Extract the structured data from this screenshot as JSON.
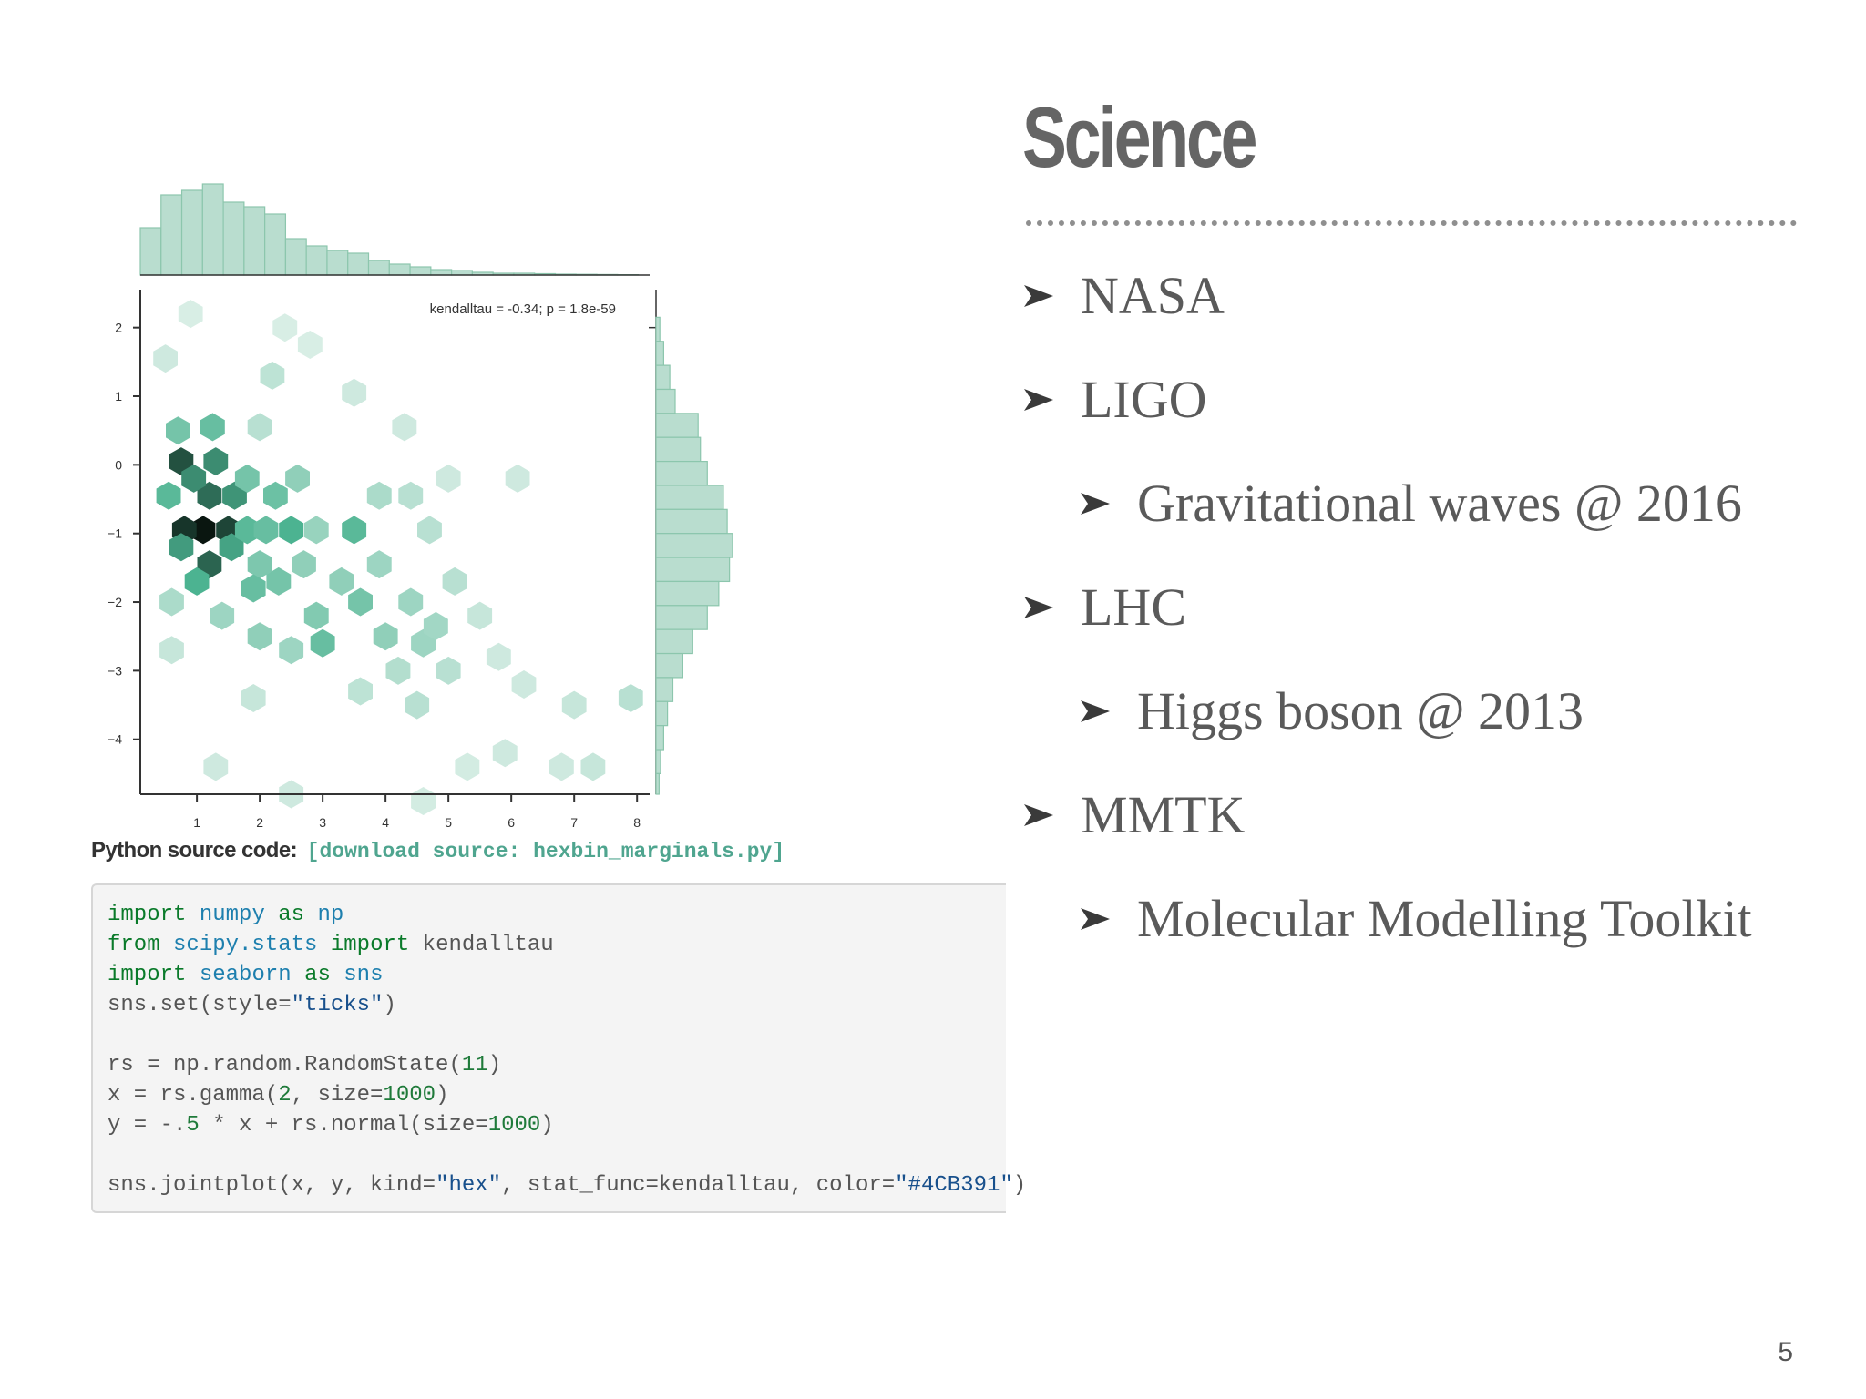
{
  "slide": {
    "title": "Science",
    "page_number": "5",
    "bullets": [
      {
        "text": "NASA",
        "level": 0
      },
      {
        "text": "LIGO",
        "level": 0
      },
      {
        "text": "Gravitational waves @ 2016",
        "level": 1
      },
      {
        "text": "LHC",
        "level": 0
      },
      {
        "text": "Higgs boson @ 2013",
        "level": 1
      },
      {
        "text": "MMTK",
        "level": 0
      },
      {
        "text": "Molecular Modelling Toolkit",
        "level": 1
      }
    ]
  },
  "code_caption": {
    "label": "Python source code:",
    "link": "[download source: hexbin_marginals.py]"
  },
  "code_lines": [
    [
      {
        "t": "import",
        "c": "kw"
      },
      {
        "t": " "
      },
      {
        "t": "numpy",
        "c": "mod"
      },
      {
        "t": " "
      },
      {
        "t": "as",
        "c": "kw"
      },
      {
        "t": " "
      },
      {
        "t": "np",
        "c": "mod"
      }
    ],
    [
      {
        "t": "from",
        "c": "kw"
      },
      {
        "t": " "
      },
      {
        "t": "scipy.stats",
        "c": "mod"
      },
      {
        "t": " "
      },
      {
        "t": "import",
        "c": "kw"
      },
      {
        "t": " kendalltau"
      }
    ],
    [
      {
        "t": "import",
        "c": "kw"
      },
      {
        "t": " "
      },
      {
        "t": "seaborn",
        "c": "mod"
      },
      {
        "t": " "
      },
      {
        "t": "as",
        "c": "kw"
      },
      {
        "t": " "
      },
      {
        "t": "sns",
        "c": "mod"
      }
    ],
    [
      {
        "t": "sns.set(style="
      },
      {
        "t": "\"ticks\"",
        "c": "str"
      },
      {
        "t": ")"
      }
    ],
    [],
    [
      {
        "t": "rs = np.random.RandomState("
      },
      {
        "t": "11",
        "c": "num"
      },
      {
        "t": ")"
      }
    ],
    [
      {
        "t": "x = rs.gamma("
      },
      {
        "t": "2",
        "c": "num"
      },
      {
        "t": ", size="
      },
      {
        "t": "1000",
        "c": "num"
      },
      {
        "t": ")"
      }
    ],
    [
      {
        "t": "y = -."
      },
      {
        "t": "5",
        "c": "num"
      },
      {
        "t": " * x + rs.normal(size="
      },
      {
        "t": "1000",
        "c": "num"
      },
      {
        "t": ")"
      }
    ],
    [],
    [
      {
        "t": "sns.jointplot(x, y, kind="
      },
      {
        "t": "\"hex\"",
        "c": "str"
      },
      {
        "t": ", stat_func=kendalltau, color="
      },
      {
        "t": "\"#4CB391\"",
        "c": "str"
      },
      {
        "t": ")"
      }
    ]
  ],
  "chart_data": {
    "type": "heatmap",
    "subtype": "hexbin-jointplot",
    "annotation": "kendalltau = -0.34; p = 1.8e-59",
    "xlim": [
      0.1,
      8.2
    ],
    "ylim": [
      -4.8,
      2.5
    ],
    "x_ticks": [
      1,
      2,
      3,
      4,
      5,
      6,
      7,
      8
    ],
    "y_ticks": [
      2,
      1,
      0,
      -1,
      -2,
      -3,
      -4
    ],
    "tick_labels_x": [
      "1",
      "2",
      "3",
      "4",
      "5",
      "6",
      "7",
      "8"
    ],
    "tick_labels_y": [
      "2",
      "1",
      "0",
      "−1",
      "−2",
      "−3",
      "−4"
    ],
    "color": "#4CB391",
    "hex_bins": [
      {
        "x": 1.1,
        "y": -0.95,
        "v": 1.0
      },
      {
        "x": 0.8,
        "y": -0.95,
        "v": 0.92
      },
      {
        "x": 1.5,
        "y": -0.95,
        "v": 0.88
      },
      {
        "x": 0.75,
        "y": 0.05,
        "v": 0.85
      },
      {
        "x": 1.2,
        "y": -1.45,
        "v": 0.8
      },
      {
        "x": 1.2,
        "y": -0.45,
        "v": 0.78
      },
      {
        "x": 0.95,
        "y": -0.2,
        "v": 0.7
      },
      {
        "x": 1.3,
        "y": 0.05,
        "v": 0.7
      },
      {
        "x": 1.6,
        "y": -0.45,
        "v": 0.68
      },
      {
        "x": 0.75,
        "y": -1.2,
        "v": 0.66
      },
      {
        "x": 1.55,
        "y": -1.2,
        "v": 0.64
      },
      {
        "x": 1.0,
        "y": -1.7,
        "v": 0.6
      },
      {
        "x": 0.55,
        "y": -0.45,
        "v": 0.55
      },
      {
        "x": 1.8,
        "y": -0.95,
        "v": 0.55
      },
      {
        "x": 2.1,
        "y": -0.95,
        "v": 0.5
      },
      {
        "x": 1.25,
        "y": 0.55,
        "v": 0.5
      },
      {
        "x": 0.7,
        "y": 0.5,
        "v": 0.45
      },
      {
        "x": 1.8,
        "y": -0.2,
        "v": 0.45
      },
      {
        "x": 2.25,
        "y": -0.45,
        "v": 0.48
      },
      {
        "x": 2.0,
        "y": -1.45,
        "v": 0.42
      },
      {
        "x": 2.5,
        "y": -0.95,
        "v": 0.6
      },
      {
        "x": 1.9,
        "y": -1.8,
        "v": 0.5
      },
      {
        "x": 2.3,
        "y": -1.7,
        "v": 0.45
      },
      {
        "x": 2.7,
        "y": -1.45,
        "v": 0.35
      },
      {
        "x": 2.6,
        "y": -0.2,
        "v": 0.35
      },
      {
        "x": 2.9,
        "y": -0.95,
        "v": 0.32
      },
      {
        "x": 3.5,
        "y": -0.95,
        "v": 0.55
      },
      {
        "x": 2.9,
        "y": -2.2,
        "v": 0.4
      },
      {
        "x": 3.0,
        "y": -2.6,
        "v": 0.5
      },
      {
        "x": 3.3,
        "y": -1.7,
        "v": 0.35
      },
      {
        "x": 3.6,
        "y": -2.0,
        "v": 0.45
      },
      {
        "x": 3.9,
        "y": -1.45,
        "v": 0.3
      },
      {
        "x": 2.0,
        "y": -2.5,
        "v": 0.35
      },
      {
        "x": 1.4,
        "y": -2.2,
        "v": 0.3
      },
      {
        "x": 0.6,
        "y": -2.0,
        "v": 0.25
      },
      {
        "x": 2.5,
        "y": -2.7,
        "v": 0.3
      },
      {
        "x": 4.0,
        "y": -2.5,
        "v": 0.35
      },
      {
        "x": 4.4,
        "y": -2.0,
        "v": 0.3
      },
      {
        "x": 4.6,
        "y": -2.6,
        "v": 0.3
      },
      {
        "x": 4.8,
        "y": -2.35,
        "v": 0.28
      },
      {
        "x": 4.2,
        "y": -3.0,
        "v": 0.22
      },
      {
        "x": 5.0,
        "y": -3.0,
        "v": 0.2
      },
      {
        "x": 4.5,
        "y": -3.5,
        "v": 0.2
      },
      {
        "x": 3.6,
        "y": -3.3,
        "v": 0.18
      },
      {
        "x": 3.9,
        "y": -0.45,
        "v": 0.25
      },
      {
        "x": 4.4,
        "y": -0.45,
        "v": 0.2
      },
      {
        "x": 4.7,
        "y": -0.95,
        "v": 0.2
      },
      {
        "x": 5.1,
        "y": -1.7,
        "v": 0.2
      },
      {
        "x": 5.5,
        "y": -2.2,
        "v": 0.15
      },
      {
        "x": 5.8,
        "y": -2.8,
        "v": 0.12
      },
      {
        "x": 6.2,
        "y": -3.2,
        "v": 0.12
      },
      {
        "x": 7.0,
        "y": -3.5,
        "v": 0.15
      },
      {
        "x": 7.9,
        "y": -3.4,
        "v": 0.2
      },
      {
        "x": 7.3,
        "y": -4.4,
        "v": 0.15
      },
      {
        "x": 6.8,
        "y": -4.4,
        "v": 0.12
      },
      {
        "x": 5.9,
        "y": -4.2,
        "v": 0.12
      },
      {
        "x": 5.3,
        "y": -4.4,
        "v": 0.1
      },
      {
        "x": 4.6,
        "y": -4.9,
        "v": 0.1
      },
      {
        "x": 2.5,
        "y": -4.8,
        "v": 0.12
      },
      {
        "x": 1.3,
        "y": -4.4,
        "v": 0.12
      },
      {
        "x": 1.9,
        "y": -3.4,
        "v": 0.15
      },
      {
        "x": 0.6,
        "y": -2.7,
        "v": 0.15
      },
      {
        "x": 2.2,
        "y": 1.3,
        "v": 0.18
      },
      {
        "x": 2.0,
        "y": 0.55,
        "v": 0.2
      },
      {
        "x": 3.5,
        "y": 1.05,
        "v": 0.12
      },
      {
        "x": 4.3,
        "y": 0.55,
        "v": 0.12
      },
      {
        "x": 5.0,
        "y": -0.2,
        "v": 0.12
      },
      {
        "x": 6.1,
        "y": -0.2,
        "v": 0.12
      },
      {
        "x": 0.5,
        "y": 1.55,
        "v": 0.12
      },
      {
        "x": 2.8,
        "y": 1.75,
        "v": 0.08
      },
      {
        "x": 0.9,
        "y": 2.2,
        "v": 0.08
      },
      {
        "x": 2.4,
        "y": 2.0,
        "v": 0.08
      }
    ],
    "marginal_x": {
      "bin_edges": [
        0.1,
        0.43,
        0.76,
        1.09,
        1.42,
        1.75,
        2.08,
        2.41,
        2.74,
        3.07,
        3.4,
        3.73,
        4.06,
        4.39,
        4.72,
        5.05,
        5.38,
        5.71,
        6.04,
        6.37,
        6.7,
        7.03,
        7.36,
        7.69,
        8.02
      ],
      "heights": [
        0.52,
        0.88,
        0.93,
        1.0,
        0.8,
        0.75,
        0.67,
        0.4,
        0.32,
        0.27,
        0.24,
        0.16,
        0.12,
        0.09,
        0.06,
        0.05,
        0.03,
        0.02,
        0.02,
        0.015,
        0.01,
        0.008,
        0.006,
        0.004
      ]
    },
    "marginal_y": {
      "bin_edges": [
        2.5,
        2.15,
        1.8,
        1.45,
        1.1,
        0.75,
        0.4,
        0.05,
        -0.3,
        -0.65,
        -1.0,
        -1.35,
        -1.7,
        -2.05,
        -2.4,
        -2.75,
        -3.1,
        -3.45,
        -3.8,
        -4.15,
        -4.5,
        -4.8
      ],
      "widths": [
        0.0,
        0.05,
        0.1,
        0.18,
        0.25,
        0.55,
        0.58,
        0.67,
        0.88,
        0.93,
        1.0,
        0.96,
        0.82,
        0.67,
        0.48,
        0.35,
        0.22,
        0.15,
        0.1,
        0.06,
        0.04
      ]
    }
  }
}
